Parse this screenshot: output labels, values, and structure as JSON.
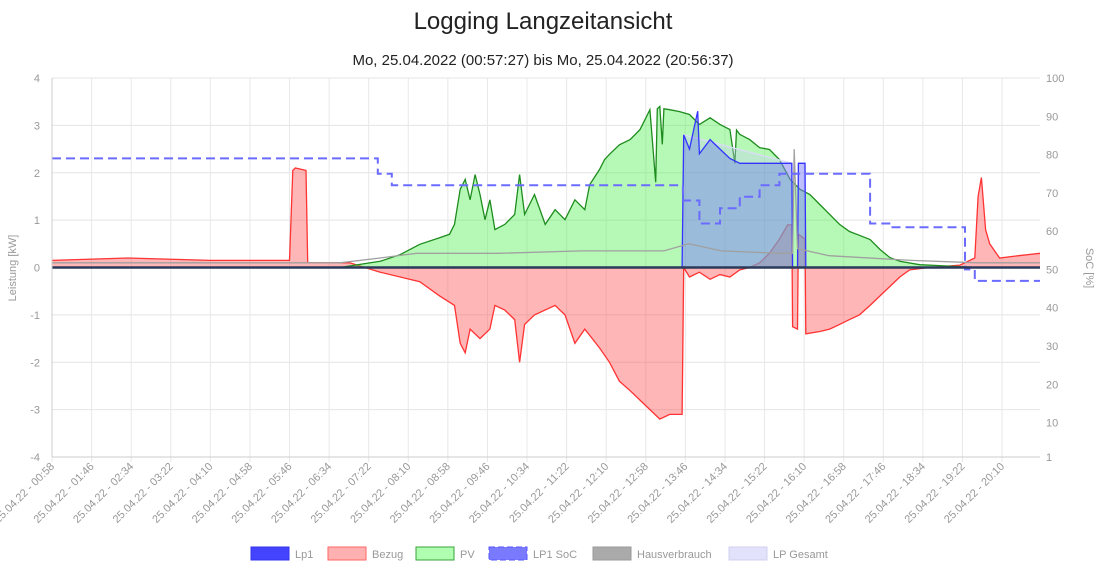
{
  "chart_data": {
    "type": "line",
    "title": "Logging Langzeitansicht",
    "subtitle": "Mo, 25.04.2022 (00:57:27) bis Mo, 25.04.2022 (20:56:37)",
    "x_unit": "minutes since 00:00",
    "xlim": [
      58,
      1256
    ],
    "x_tick_labels": [
      "25.04.22 - 00:58",
      "25.04.22 - 01:46",
      "25.04.22 - 02:34",
      "25.04.22 - 03:22",
      "25.04.22 - 04:10",
      "25.04.22 - 04:58",
      "25.04.22 - 05:46",
      "25.04.22 - 06:34",
      "25.04.22 - 07:22",
      "25.04.22 - 08:10",
      "25.04.22 - 08:58",
      "25.04.22 - 09:46",
      "25.04.22 - 10:34",
      "25.04.22 - 11:22",
      "25.04.22 - 12:10",
      "25.04.22 - 12:58",
      "25.04.22 - 13:46",
      "25.04.22 - 14:34",
      "25.04.22 - 15:22",
      "25.04.22 - 16:10",
      "25.04.22 - 16:58",
      "25.04.22 - 17:46",
      "25.04.22 - 18:34",
      "25.04.22 - 19:22",
      "25.04.22 - 20:10"
    ],
    "ylabel": "Leistung [kW]",
    "ylim": [
      -4,
      4
    ],
    "y_ticks": [
      "4",
      "3",
      "2",
      "1",
      "0",
      "-1",
      "-2",
      "-3",
      "-4"
    ],
    "y2label": "SoC [%]",
    "y2lim": [
      1,
      100
    ],
    "y2_ticks": [
      "100",
      "90",
      "80",
      "70",
      "60",
      "50",
      "40",
      "30",
      "20",
      "10",
      "1"
    ],
    "grid": true,
    "legend_position": "bottom",
    "series": [
      {
        "name": "Lp1",
        "axis": "left",
        "color": "#3333ff",
        "fill": "rgba(51,51,255,0.25)",
        "points": [
          [
            58,
            0
          ],
          [
            822,
            0
          ],
          [
            824,
            2.8
          ],
          [
            831,
            2.5
          ],
          [
            841,
            3.3
          ],
          [
            843,
            2.4
          ],
          [
            856,
            2.7
          ],
          [
            868,
            2.5
          ],
          [
            880,
            2.3
          ],
          [
            892,
            2.2
          ],
          [
            904,
            2.2
          ],
          [
            916,
            2.2
          ],
          [
            940,
            2.2
          ],
          [
            955,
            2.2
          ],
          [
            956,
            0
          ],
          [
            962,
            0
          ],
          [
            963,
            2.2
          ],
          [
            971,
            2.2
          ],
          [
            972,
            0
          ],
          [
            1256,
            0
          ]
        ]
      },
      {
        "name": "Bezug",
        "axis": "left",
        "color": "#ff3333",
        "fill": "rgba(255,80,80,0.42)",
        "points": [
          [
            58,
            0.15
          ],
          [
            150,
            0.2
          ],
          [
            250,
            0.15
          ],
          [
            346,
            0.15
          ],
          [
            350,
            2.05
          ],
          [
            353,
            2.1
          ],
          [
            366,
            2.05
          ],
          [
            368,
            0.1
          ],
          [
            419,
            0.1
          ],
          [
            456,
            -0.1
          ],
          [
            504,
            -0.3
          ],
          [
            528,
            -0.6
          ],
          [
            546,
            -0.8
          ],
          [
            553,
            -1.6
          ],
          [
            559,
            -1.8
          ],
          [
            565,
            -1.3
          ],
          [
            577,
            -1.5
          ],
          [
            589,
            -1.3
          ],
          [
            595,
            -0.8
          ],
          [
            607,
            -0.9
          ],
          [
            619,
            -1.1
          ],
          [
            625,
            -2.0
          ],
          [
            631,
            -1.2
          ],
          [
            643,
            -1.0
          ],
          [
            668,
            -0.8
          ],
          [
            680,
            -1.0
          ],
          [
            692,
            -1.6
          ],
          [
            704,
            -1.3
          ],
          [
            722,
            -1.7
          ],
          [
            734,
            -2.0
          ],
          [
            746,
            -2.4
          ],
          [
            759,
            -2.6
          ],
          [
            771,
            -2.8
          ],
          [
            783,
            -3.0
          ],
          [
            795,
            -3.2
          ],
          [
            807,
            -3.1
          ],
          [
            822,
            -3.1
          ],
          [
            824,
            0
          ],
          [
            831,
            -0.2
          ],
          [
            843,
            -0.1
          ],
          [
            856,
            -0.25
          ],
          [
            868,
            -0.15
          ],
          [
            880,
            -0.2
          ],
          [
            892,
            -0.05
          ],
          [
            904,
            0
          ],
          [
            916,
            0.1
          ],
          [
            928,
            0.3
          ],
          [
            940,
            0.6
          ],
          [
            950,
            0.9
          ],
          [
            955,
            0.9
          ],
          [
            956,
            -1.25
          ],
          [
            962,
            -1.3
          ],
          [
            963,
            0.7
          ],
          [
            971,
            0.6
          ],
          [
            972,
            -1.4
          ],
          [
            989,
            -1.35
          ],
          [
            1001,
            -1.3
          ],
          [
            1013,
            -1.2
          ],
          [
            1025,
            -1.1
          ],
          [
            1037,
            -1.0
          ],
          [
            1050,
            -0.8
          ],
          [
            1062,
            -0.6
          ],
          [
            1074,
            -0.4
          ],
          [
            1086,
            -0.2
          ],
          [
            1098,
            -0.05
          ],
          [
            1122,
            0
          ],
          [
            1159,
            0.05
          ],
          [
            1177,
            0.2
          ],
          [
            1181,
            1.5
          ],
          [
            1185,
            1.9
          ],
          [
            1190,
            0.8
          ],
          [
            1195,
            0.5
          ],
          [
            1207,
            0.2
          ],
          [
            1230,
            0.25
          ],
          [
            1256,
            0.3
          ]
        ]
      },
      {
        "name": "PV",
        "axis": "left",
        "color": "#1e8c1e",
        "fill": "rgba(80,240,80,0.42)",
        "points": [
          [
            58,
            0
          ],
          [
            407,
            0
          ],
          [
            456,
            0.13
          ],
          [
            480,
            0.27
          ],
          [
            504,
            0.49
          ],
          [
            528,
            0.63
          ],
          [
            540,
            0.7
          ],
          [
            546,
            0.91
          ],
          [
            553,
            1.65
          ],
          [
            559,
            1.86
          ],
          [
            565,
            1.43
          ],
          [
            571,
            1.96
          ],
          [
            577,
            1.54
          ],
          [
            583,
            1.01
          ],
          [
            589,
            1.43
          ],
          [
            595,
            0.8
          ],
          [
            607,
            0.91
          ],
          [
            619,
            1.12
          ],
          [
            625,
            1.96
          ],
          [
            631,
            1.12
          ],
          [
            643,
            1.54
          ],
          [
            656,
            0.91
          ],
          [
            668,
            1.22
          ],
          [
            680,
            1.01
          ],
          [
            692,
            1.43
          ],
          [
            704,
            1.22
          ],
          [
            710,
            1.75
          ],
          [
            722,
            2.07
          ],
          [
            728,
            2.28
          ],
          [
            734,
            2.39
          ],
          [
            746,
            2.59
          ],
          [
            759,
            2.7
          ],
          [
            771,
            2.91
          ],
          [
            783,
            3.33
          ],
          [
            790,
            1.8
          ],
          [
            792,
            3.35
          ],
          [
            795,
            3.4
          ],
          [
            798,
            2.6
          ],
          [
            800,
            3.35
          ],
          [
            807,
            3.33
          ],
          [
            819,
            3.29
          ],
          [
            831,
            3.23
          ],
          [
            843,
            3.02
          ],
          [
            856,
            3.16
          ],
          [
            868,
            3.02
          ],
          [
            880,
            2.91
          ],
          [
            886,
            2.2
          ],
          [
            888,
            2.9
          ],
          [
            892,
            2.81
          ],
          [
            904,
            2.7
          ],
          [
            916,
            2.53
          ],
          [
            928,
            2.49
          ],
          [
            940,
            2.28
          ],
          [
            953,
            1.86
          ],
          [
            965,
            1.65
          ],
          [
            977,
            1.54
          ],
          [
            989,
            1.33
          ],
          [
            1001,
            1.12
          ],
          [
            1013,
            0.91
          ],
          [
            1025,
            0.76
          ],
          [
            1037,
            0.68
          ],
          [
            1050,
            0.59
          ],
          [
            1062,
            0.38
          ],
          [
            1074,
            0.21
          ],
          [
            1086,
            0.13
          ],
          [
            1110,
            0.06
          ],
          [
            1134,
            0.04
          ],
          [
            1159,
            0.02
          ],
          [
            1183,
            0
          ],
          [
            1256,
            0
          ]
        ]
      },
      {
        "name": "LP1 SoC",
        "axis": "right",
        "color": "#6b6bff",
        "dashed": true,
        "points": [
          [
            58,
            79
          ],
          [
            453,
            79
          ],
          [
            453,
            75
          ],
          [
            470,
            75
          ],
          [
            470,
            72
          ],
          [
            823,
            72
          ],
          [
            823,
            68
          ],
          [
            843,
            68
          ],
          [
            843,
            62
          ],
          [
            868,
            62
          ],
          [
            868,
            66
          ],
          [
            892,
            66
          ],
          [
            892,
            69
          ],
          [
            916,
            69
          ],
          [
            916,
            72
          ],
          [
            940,
            72
          ],
          [
            940,
            75
          ],
          [
            1050,
            75
          ],
          [
            1050,
            62
          ],
          [
            1075,
            62
          ],
          [
            1075,
            61
          ],
          [
            1165,
            61
          ],
          [
            1165,
            50
          ],
          [
            1177,
            50
          ],
          [
            1177,
            47
          ],
          [
            1256,
            47
          ]
        ]
      },
      {
        "name": "Hausverbrauch",
        "axis": "left",
        "color": "#a0a0a0",
        "points": [
          [
            58,
            0.1
          ],
          [
            407,
            0.1
          ],
          [
            456,
            0.2
          ],
          [
            500,
            0.3
          ],
          [
            600,
            0.3
          ],
          [
            700,
            0.35
          ],
          [
            800,
            0.35
          ],
          [
            830,
            0.5
          ],
          [
            870,
            0.35
          ],
          [
            940,
            0.3
          ],
          [
            956,
            0.3
          ],
          [
            958,
            2.5
          ],
          [
            962,
            0.4
          ],
          [
            1000,
            0.25
          ],
          [
            1100,
            0.15
          ],
          [
            1180,
            0.1
          ],
          [
            1256,
            0.1
          ]
        ]
      },
      {
        "name": "LP Gesamt",
        "axis": "left",
        "color": "#dcdcf8",
        "fill": "rgba(200,200,250,0.35)",
        "points": [
          [
            58,
            0
          ],
          [
            822,
            0
          ],
          [
            824,
            2.8
          ],
          [
            955,
            2.2
          ],
          [
            956,
            0
          ],
          [
            962,
            0
          ],
          [
            963,
            2.2
          ],
          [
            971,
            2.2
          ],
          [
            972,
            0
          ],
          [
            1256,
            0
          ]
        ]
      }
    ]
  }
}
